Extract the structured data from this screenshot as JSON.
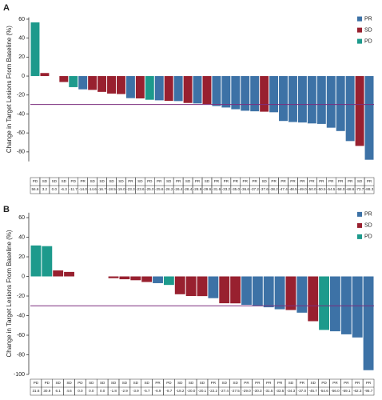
{
  "chart_data": [
    {
      "type": "bar",
      "panel": "A",
      "ylabel": "Change in Target Lesions From Baseline (%)",
      "legend": [
        {
          "name": "PR",
          "color": "#3d72a6"
        },
        {
          "name": "SD",
          "color": "#98202f"
        },
        {
          "name": "PD",
          "color": "#1d9a8c"
        }
      ],
      "categories": [
        "PD",
        "SD",
        "SD",
        "SD",
        "PD",
        "PR",
        "SD",
        "SD",
        "SD",
        "SD",
        "PR",
        "SD",
        "PD",
        "PR",
        "SD",
        "PR",
        "SD",
        "PR",
        "SD",
        "PR",
        "PR",
        "PR",
        "PR",
        "PR",
        "SD",
        "PR",
        "PR",
        "PR",
        "PR",
        "PR",
        "PR",
        "PR",
        "PR",
        "PR",
        "SD",
        "PR"
      ],
      "values": [
        56.6,
        3.2,
        0.0,
        -6.3,
        -11.7,
        -14.0,
        -14.6,
        -16.7,
        -18.5,
        -19.0,
        -23.3,
        -23.6,
        -25.0,
        -25.6,
        -26.2,
        -26.4,
        -28.4,
        -28.9,
        -29.6,
        -31.6,
        -33.2,
        -35.0,
        -36.6,
        -37.2,
        -37.6,
        -38.2,
        -47.4,
        -48.5,
        -49.0,
        -50.0,
        -50.5,
        -54.5,
        -58.0,
        -68.6,
        -73.7,
        -88.3
      ],
      "value_labels": [
        "56.6",
        "3.2",
        "0.0",
        "-6.3",
        "-11.7",
        "-14.0",
        "-14.6",
        "-16.7",
        "-18.5",
        "-19.0",
        "-23.3",
        "-23.6",
        "-25.0",
        "-25.6",
        "-26.2",
        "-26.4",
        "-28.4",
        "-28.9",
        "-29.6",
        "-31.6",
        "-33.2",
        "-35.0",
        "-36.6",
        "-37.2",
        "-37.6",
        "-38.2",
        "-47.4",
        "-48.5",
        "-49.0",
        "-50.0",
        "-50.5",
        "-54.5",
        "-58.0",
        "-68.6",
        "-73.7",
        "-88.3"
      ],
      "ylim": [
        -90,
        62
      ],
      "yticks": [
        60,
        40,
        20,
        0,
        -20,
        -40,
        -60,
        -80
      ],
      "reference_line": {
        "value": -30,
        "color": "#7b2f7e"
      }
    },
    {
      "type": "bar",
      "panel": "B",
      "ylabel": "Change in Target Lesions From Baseline (%)",
      "legend": [
        {
          "name": "PR",
          "color": "#3d72a6"
        },
        {
          "name": "SD",
          "color": "#98202f"
        },
        {
          "name": "PD",
          "color": "#1d9a8c"
        }
      ],
      "categories": [
        "PD",
        "PD",
        "SD",
        "SD",
        "PD",
        "SD",
        "SD",
        "SD",
        "SD",
        "SD",
        "SD",
        "PR",
        "PD",
        "SD",
        "SD",
        "SD",
        "PR",
        "SD",
        "SD",
        "PR",
        "PR",
        "PR",
        "PR",
        "SD",
        "PR",
        "SD",
        "PD",
        "PR",
        "PR",
        "PR",
        "PR"
      ],
      "values": [
        31.6,
        30.9,
        6.1,
        4.6,
        0.0,
        0.0,
        0.0,
        -1.8,
        -2.9,
        -3.9,
        -5.7,
        -6.9,
        -8.7,
        -18.2,
        -20.0,
        -20.1,
        -22.2,
        -27.4,
        -27.5,
        -29.0,
        -30.3,
        -31.5,
        -33.5,
        -34.3,
        -37.0,
        -45.7,
        -54.6,
        -56.0,
        -59.1,
        -62.3,
        -95.7
      ],
      "value_labels": [
        "31.6",
        "30.9",
        "6.1",
        "4.6",
        "0.0",
        "0.0",
        "0.0",
        "-1.8",
        "-2.9",
        "-3.9",
        "-5.7",
        "-6.9",
        "-8.7",
        "-18.2",
        "-20.0",
        "-20.1",
        "-22.2",
        "-27.4",
        "-27.5",
        "-29.0",
        "-30.3",
        "-31.5",
        "-33.5",
        "-34.3",
        "-37.0",
        "-45.7",
        "-54.6",
        "-56.0",
        "-59.1",
        "-62.3",
        "-95.7"
      ],
      "ylim": [
        -100,
        65
      ],
      "yticks": [
        60,
        40,
        20,
        0,
        -20,
        -40,
        -60,
        -80,
        -100
      ],
      "reference_line": {
        "value": -30,
        "color": "#7b2f7e"
      }
    }
  ]
}
